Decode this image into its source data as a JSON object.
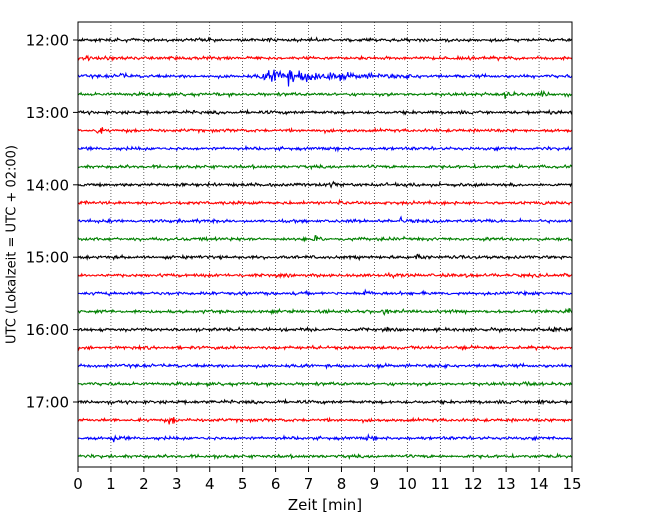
{
  "chart_data": {
    "type": "line",
    "subtype": "helicorder seismogram",
    "title": "",
    "xlabel": "Zeit  [min]",
    "ylabel": "UTC (Lokalzeit = UTC + 02:00)",
    "xlim": [
      0,
      15
    ],
    "x_ticks": [
      0,
      1,
      2,
      3,
      4,
      5,
      6,
      7,
      8,
      9,
      10,
      11,
      12,
      13,
      14,
      15
    ],
    "row_interval_min": 15,
    "start_time": "12:00",
    "y_tick_labels": [
      "12:00",
      "13:00",
      "14:00",
      "15:00",
      "16:00",
      "17:00"
    ],
    "y_tick_rows": [
      0,
      4,
      8,
      12,
      16,
      20
    ],
    "grid": "vertical dotted at every minute",
    "color_cycle": [
      "#000000",
      "#ff0000",
      "#0000ff",
      "#008000"
    ],
    "rows": [
      {
        "time": "12:00",
        "color": "#000000",
        "events": [
          {
            "t": 5.8,
            "amp": 0.25
          }
        ]
      },
      {
        "time": "12:15",
        "color": "#ff0000",
        "events": [
          {
            "t": 0.3,
            "amp": 0.45
          }
        ]
      },
      {
        "time": "12:30",
        "color": "#0000ff",
        "events": [
          {
            "t": 1.3,
            "amp": 0.3
          },
          {
            "t": 6.2,
            "amp": 0.8,
            "duration": 2.8
          },
          {
            "t": 9.9,
            "amp": 0.35
          }
        ]
      },
      {
        "time": "12:45",
        "color": "#008000",
        "events": [
          {
            "t": 13.0,
            "amp": 0.5
          },
          {
            "t": 14.1,
            "amp": 0.3
          }
        ]
      },
      {
        "time": "13:00",
        "color": "#000000",
        "events": [
          {
            "t": 14.3,
            "amp": 0.4
          }
        ]
      },
      {
        "time": "13:15",
        "color": "#ff0000",
        "events": [
          {
            "t": 0.6,
            "amp": 0.45
          }
        ]
      },
      {
        "time": "13:30",
        "color": "#0000ff",
        "events": []
      },
      {
        "time": "13:45",
        "color": "#008000",
        "events": []
      },
      {
        "time": "14:00",
        "color": "#000000",
        "events": [
          {
            "t": 7.7,
            "amp": 0.35
          },
          {
            "t": 10.2,
            "amp": 0.3
          }
        ]
      },
      {
        "time": "14:15",
        "color": "#ff0000",
        "events": [
          {
            "t": 7.9,
            "amp": 0.3
          },
          {
            "t": 14.1,
            "amp": 0.35
          }
        ]
      },
      {
        "time": "14:30",
        "color": "#0000ff",
        "events": [
          {
            "t": 9.8,
            "amp": 0.3
          }
        ]
      },
      {
        "time": "14:45",
        "color": "#008000",
        "events": [
          {
            "t": 7.2,
            "amp": 0.25
          }
        ]
      },
      {
        "time": "15:00",
        "color": "#000000",
        "events": [
          {
            "t": 10.3,
            "amp": 0.3
          }
        ]
      },
      {
        "time": "15:15",
        "color": "#ff0000",
        "events": [
          {
            "t": 11.8,
            "amp": 0.3
          }
        ]
      },
      {
        "time": "15:30",
        "color": "#0000ff",
        "events": [
          {
            "t": 8.7,
            "amp": 0.4
          }
        ]
      },
      {
        "time": "15:45",
        "color": "#008000",
        "events": [
          {
            "t": 9.3,
            "amp": 0.35
          },
          {
            "t": 14.8,
            "amp": 0.35
          }
        ]
      },
      {
        "time": "16:00",
        "color": "#000000",
        "events": [
          {
            "t": 14.5,
            "amp": 0.3
          }
        ]
      },
      {
        "time": "16:15",
        "color": "#ff0000",
        "events": [
          {
            "t": 11.7,
            "amp": 0.35
          }
        ]
      },
      {
        "time": "16:30",
        "color": "#0000ff",
        "events": [
          {
            "t": 11.0,
            "amp": 0.3
          }
        ]
      },
      {
        "time": "16:45",
        "color": "#008000",
        "events": [
          {
            "t": 13.6,
            "amp": 0.3
          }
        ]
      },
      {
        "time": "17:00",
        "color": "#000000",
        "events": [
          {
            "t": 14.0,
            "amp": 0.3
          }
        ]
      },
      {
        "time": "17:15",
        "color": "#ff0000",
        "events": [
          {
            "t": 2.8,
            "amp": 0.55
          }
        ]
      },
      {
        "time": "17:30",
        "color": "#0000ff",
        "events": [
          {
            "t": 1.1,
            "amp": 0.5
          },
          {
            "t": 8.8,
            "amp": 0.25
          }
        ]
      },
      {
        "time": "17:45",
        "color": "#008000",
        "events": []
      }
    ]
  }
}
